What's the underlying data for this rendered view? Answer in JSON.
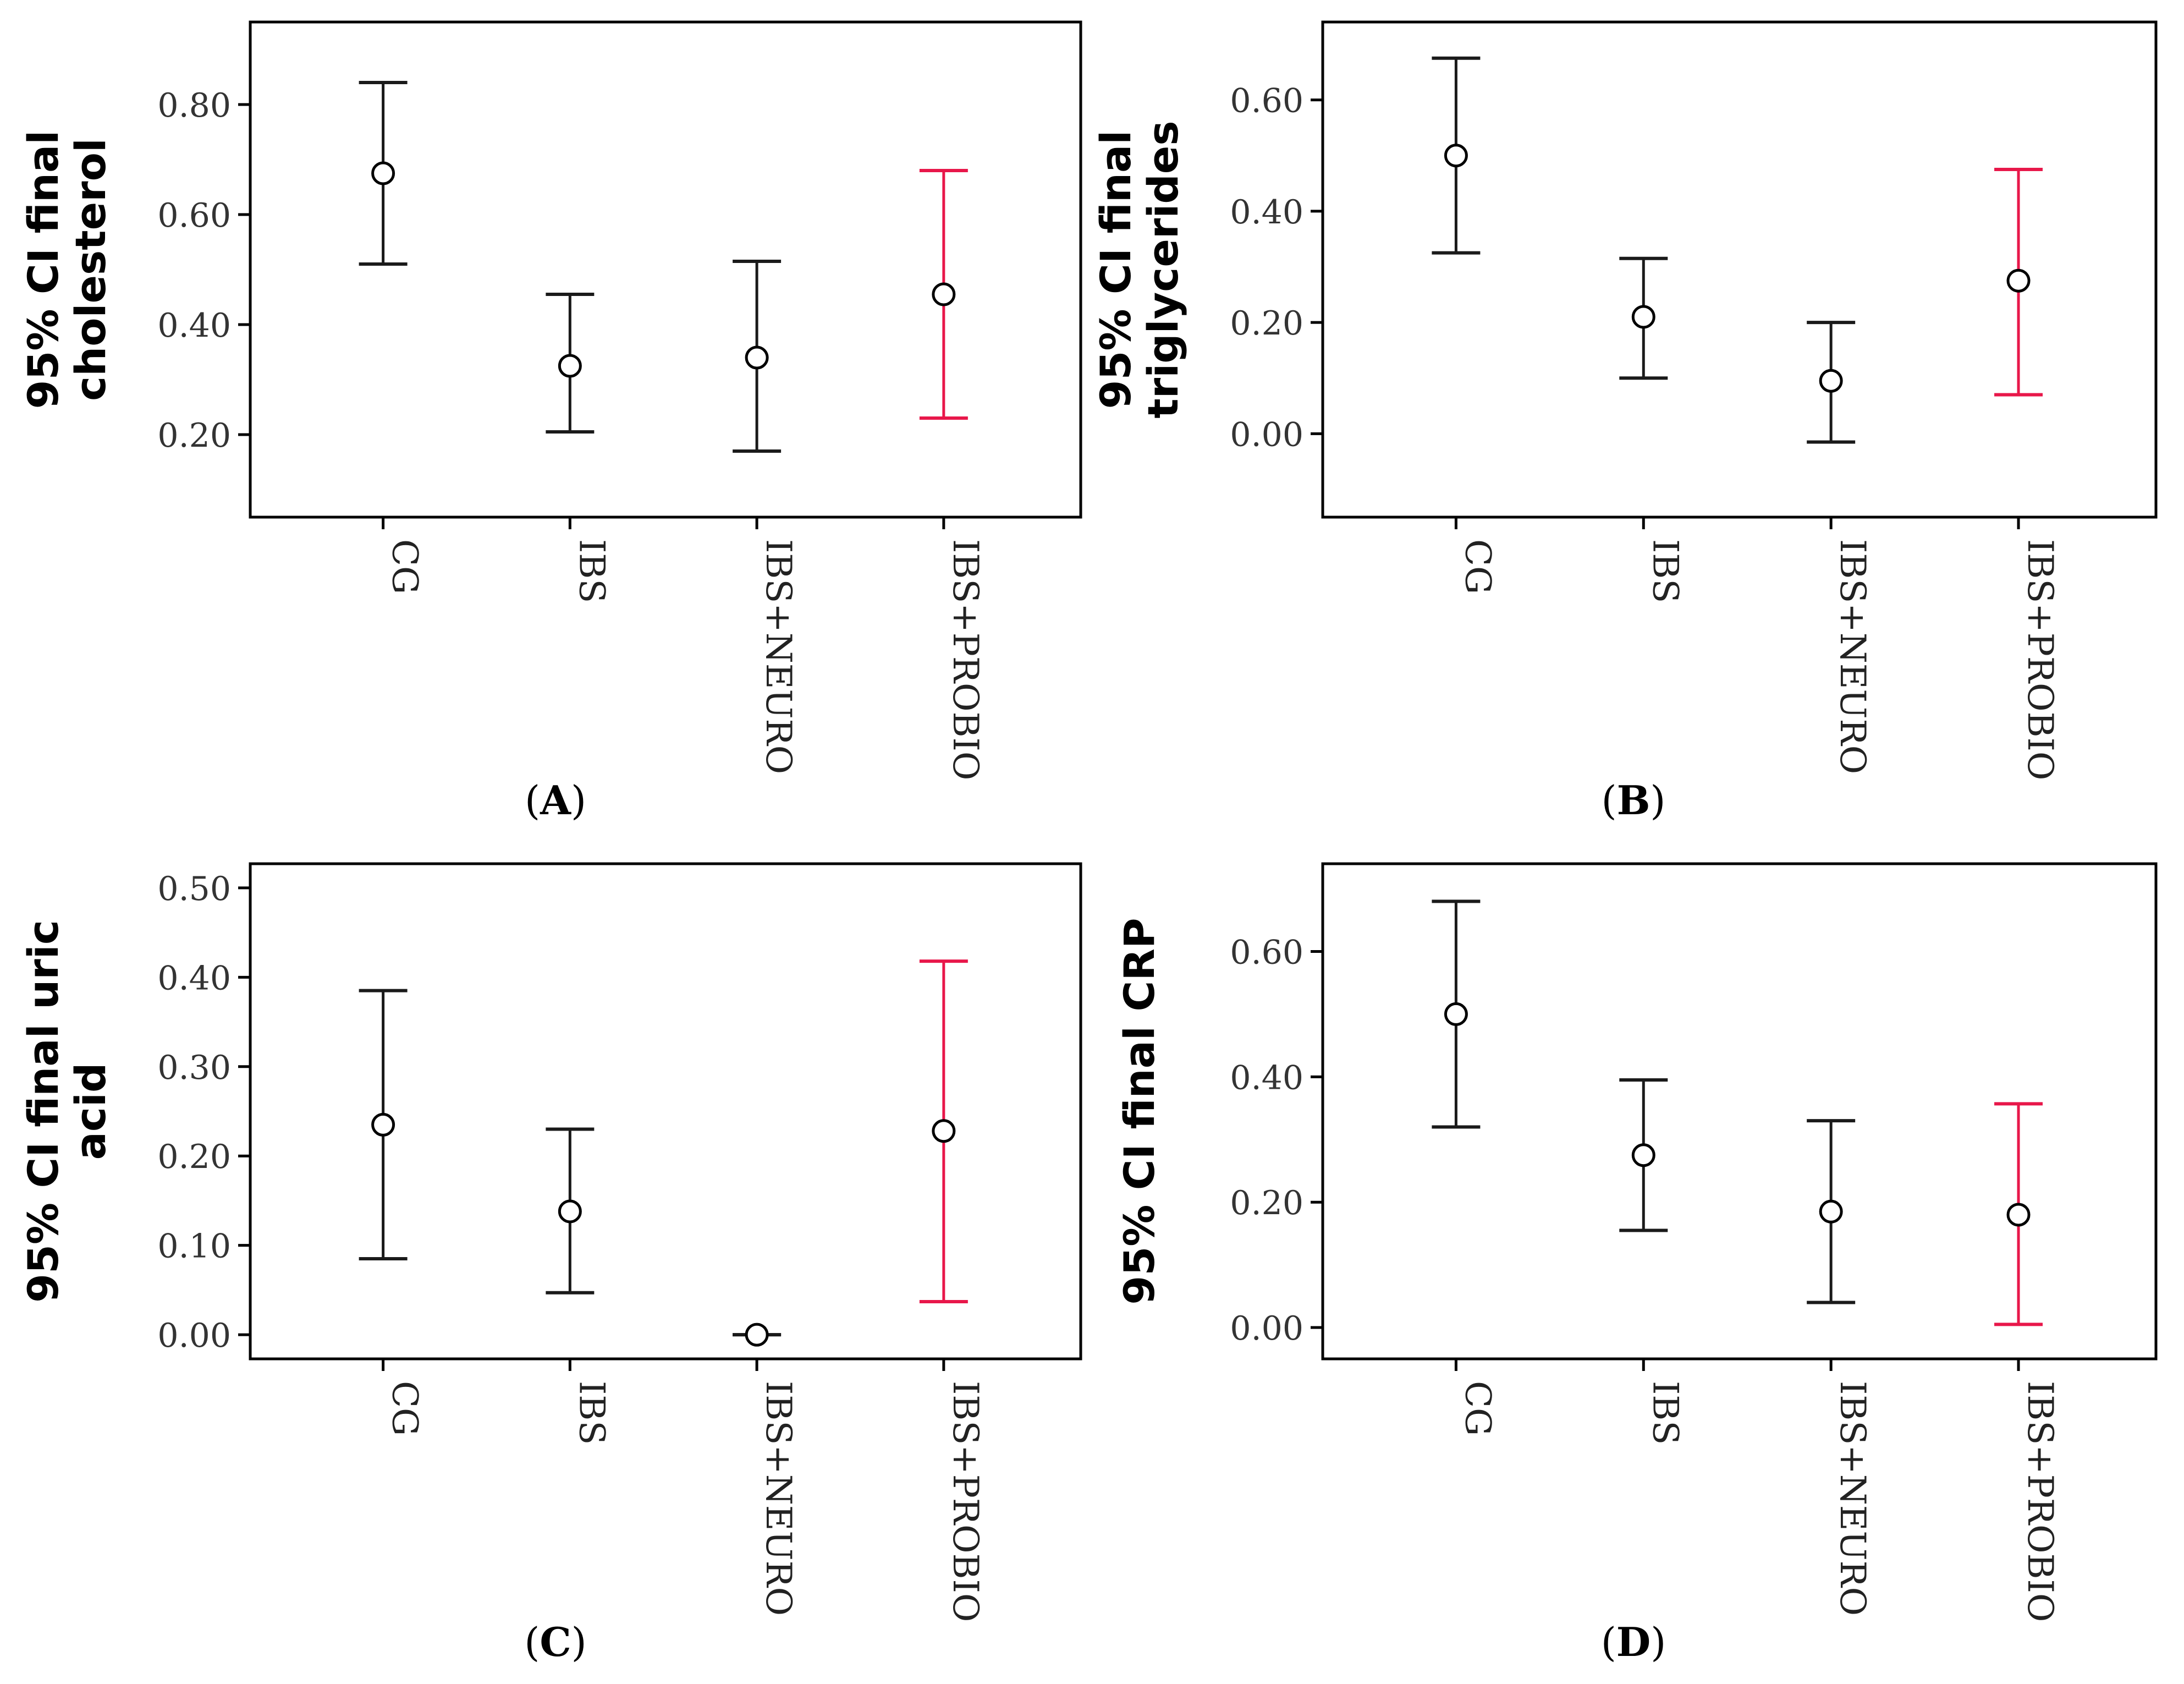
{
  "colors": {
    "default": "#1a1a1a",
    "highlight": "#e8174a",
    "frame": "#000000",
    "background": "#ffffff"
  },
  "chart_data": [
    {
      "panel": "(A)",
      "panel_letter": "A",
      "type": "errorbar",
      "ylabel_lines": [
        "95% CI final",
        "cholesterol"
      ],
      "categories": [
        "CG",
        "IBS",
        "IBS+NEURO",
        "IBS+PROBIO"
      ],
      "means": [
        0.675,
        0.325,
        0.34,
        0.455
      ],
      "lower": [
        0.51,
        0.205,
        0.17,
        0.23
      ],
      "upper": [
        0.84,
        0.455,
        0.515,
        0.68
      ],
      "highlight_index": 3,
      "yticks": [
        0.8,
        0.6,
        0.4,
        0.2
      ],
      "ytick_labels": [
        "0.80",
        "0.60",
        "0.40",
        "0.20"
      ],
      "ylim": [
        0.05,
        0.95
      ]
    },
    {
      "panel": "(B)",
      "panel_letter": "B",
      "type": "errorbar",
      "ylabel_lines": [
        "95% CI final",
        "triglycerides"
      ],
      "categories": [
        "CG",
        "IBS",
        "IBS+NEURO",
        "IBS+PROBIO"
      ],
      "means": [
        0.5,
        0.21,
        0.095,
        0.275
      ],
      "lower": [
        0.325,
        0.1,
        -0.015,
        0.07
      ],
      "upper": [
        0.675,
        0.315,
        0.2,
        0.475
      ],
      "highlight_index": 3,
      "yticks": [
        0.6,
        0.4,
        0.2,
        0.0
      ],
      "ytick_labels": [
        "0.60",
        "0.40",
        "0.20",
        "0.00"
      ],
      "ylim": [
        -0.15,
        0.74
      ]
    },
    {
      "panel": "(C)",
      "panel_letter": "C",
      "type": "errorbar",
      "ylabel_lines": [
        "95% CI final uric",
        "acid"
      ],
      "categories": [
        "CG",
        "IBS",
        "IBS+NEURO",
        "IBS+PROBIO"
      ],
      "means": [
        0.235,
        0.138,
        0.0,
        0.228
      ],
      "lower": [
        0.085,
        0.047,
        0.0,
        0.037
      ],
      "upper": [
        0.385,
        0.23,
        0.0,
        0.418
      ],
      "highlight_index": 3,
      "yticks": [
        0.5,
        0.4,
        0.3,
        0.2,
        0.1,
        0.0
      ],
      "ytick_labels": [
        "0.50",
        "0.40",
        "0.30",
        "0.20",
        "0.10",
        "0.00"
      ],
      "ylim": [
        -0.027,
        0.527
      ]
    },
    {
      "panel": "(D)",
      "panel_letter": "D",
      "type": "errorbar",
      "ylabel_lines": [
        "95% CI final CRP"
      ],
      "categories": [
        "CG",
        "IBS",
        "IBS+NEURO",
        "IBS+PROBIO"
      ],
      "means": [
        0.5,
        0.275,
        0.185,
        0.18
      ],
      "lower": [
        0.32,
        0.155,
        0.04,
        0.005
      ],
      "upper": [
        0.68,
        0.395,
        0.33,
        0.357
      ],
      "highlight_index": 3,
      "yticks": [
        0.6,
        0.4,
        0.2,
        0.0
      ],
      "ytick_labels": [
        "0.60",
        "0.40",
        "0.20",
        "0.00"
      ],
      "ylim": [
        -0.05,
        0.74
      ]
    }
  ]
}
